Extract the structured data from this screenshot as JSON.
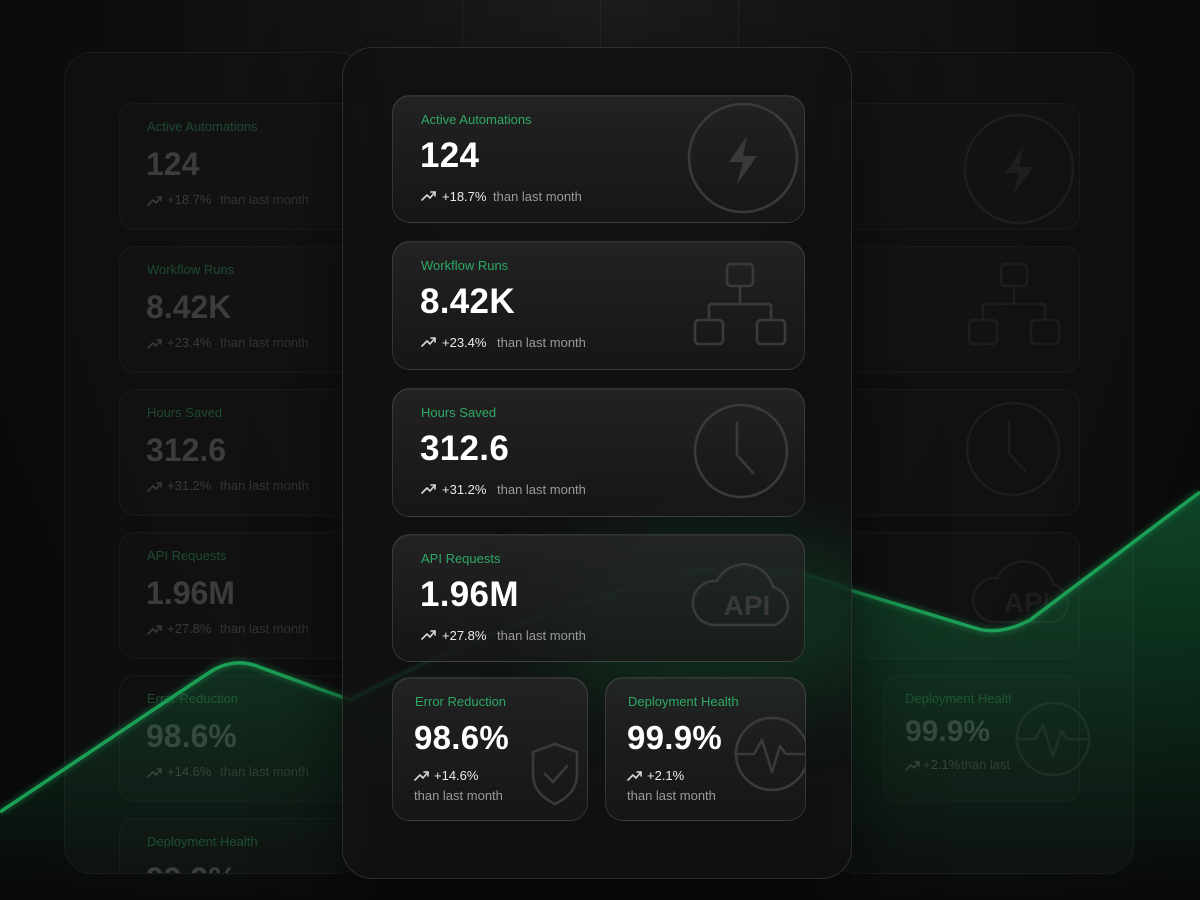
{
  "cards": [
    {
      "label": "Active Automations",
      "value": "124",
      "change": "+18.7%",
      "suffix": "than last month"
    },
    {
      "label": "Workflow Runs",
      "value": "8.42K",
      "change": "+23.4%",
      "suffix": "than last month"
    },
    {
      "label": "Hours Saved",
      "value": "312.6",
      "change": "+31.2%",
      "suffix": "than last month"
    },
    {
      "label": "API Requests",
      "value": "1.96M",
      "change": "+27.8%",
      "suffix": "than last month"
    },
    {
      "label": "Error Reduction",
      "value": "98.6%",
      "change": "+14.6%",
      "suffix": "than last month"
    },
    {
      "label": "Deployment Health",
      "value": "99.9%",
      "change": "+2.1%",
      "suffix": "than last month"
    }
  ]
}
